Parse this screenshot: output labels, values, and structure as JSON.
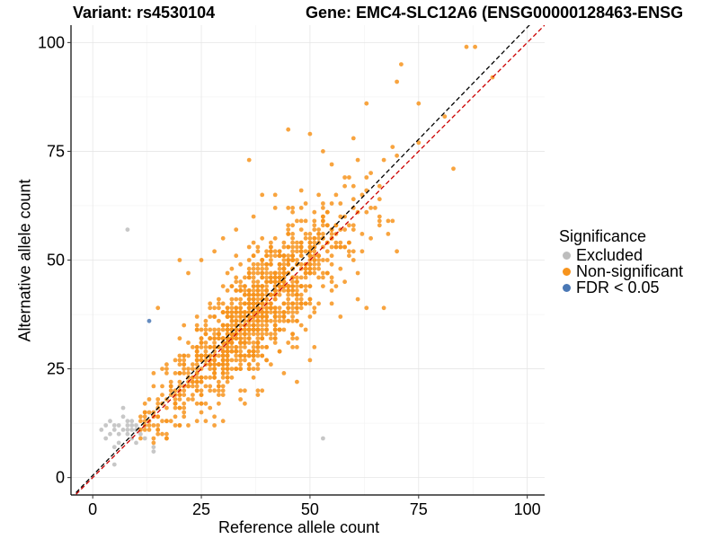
{
  "chart_data": {
    "type": "scatter",
    "title_left": "Variant: rs4530104",
    "title_right": "Gene: EMC4-SLC12A6 (ENSG00000128463-ENSG",
    "xlabel": "Reference allele count",
    "ylabel": "Alternative allele count",
    "xlim": [
      -5,
      104
    ],
    "ylim": [
      -4,
      104
    ],
    "x_ticks": [
      0,
      25,
      50,
      75,
      100
    ],
    "y_ticks": [
      0,
      25,
      50,
      75,
      100
    ],
    "grid": true,
    "reference_lines": [
      {
        "name": "identity",
        "slope": 1,
        "intercept": 0,
        "color": "#cc0000",
        "style": "dashed"
      },
      {
        "name": "fit",
        "slope": 1.03,
        "intercept": 0.5,
        "color": "#000000",
        "style": "dashed"
      }
    ],
    "legend": {
      "title": "Significance",
      "position": "right",
      "entries": [
        {
          "label": "Excluded",
          "color": "#bdbdbd"
        },
        {
          "label": "Non-significant",
          "color": "#f7941d"
        },
        {
          "label": "FDR < 0.05",
          "color": "#4a78b5"
        }
      ]
    },
    "series": [
      {
        "name": "Excluded",
        "color": "#bdbdbd",
        "points": [
          [
            8,
            57
          ],
          [
            53,
            9
          ],
          [
            2,
            11
          ],
          [
            3,
            12
          ],
          [
            4,
            10
          ],
          [
            4,
            13
          ],
          [
            5,
            11
          ],
          [
            5,
            12
          ],
          [
            5,
            7
          ],
          [
            5,
            3
          ],
          [
            6,
            12
          ],
          [
            6,
            10
          ],
          [
            7,
            14
          ],
          [
            7,
            16
          ],
          [
            8,
            10
          ],
          [
            8,
            11
          ],
          [
            8,
            12
          ],
          [
            8,
            13
          ],
          [
            9,
            13
          ],
          [
            9,
            11
          ],
          [
            9,
            9
          ],
          [
            10,
            8
          ],
          [
            10,
            12
          ],
          [
            11,
            10
          ],
          [
            12,
            9
          ],
          [
            12,
            12
          ],
          [
            14,
            7
          ],
          [
            14,
            6
          ],
          [
            6,
            8
          ],
          [
            3,
            9
          ],
          [
            7,
            11
          ],
          [
            9,
            12
          ],
          [
            10,
            11
          ],
          [
            11,
            11
          ]
        ]
      },
      {
        "name": "Non-significant",
        "color": "#f7941d",
        "anchors": [
          [
            86,
            99
          ],
          [
            88,
            99
          ],
          [
            71,
            95
          ],
          [
            70,
            91
          ],
          [
            92,
            92
          ],
          [
            81,
            83
          ],
          [
            83,
            71
          ],
          [
            75,
            86
          ],
          [
            63,
            86
          ],
          [
            75,
            77
          ],
          [
            67,
            73
          ],
          [
            69,
            76
          ],
          [
            70,
            74
          ],
          [
            60,
            78
          ],
          [
            63,
            69
          ],
          [
            55,
            72
          ],
          [
            53,
            75
          ],
          [
            50,
            79
          ],
          [
            45,
            80
          ],
          [
            36,
            73
          ],
          [
            65,
            62
          ],
          [
            66,
            64
          ],
          [
            68,
            56
          ],
          [
            69,
            59
          ],
          [
            70,
            52
          ],
          [
            57,
            63
          ],
          [
            58,
            60
          ],
          [
            60,
            64
          ],
          [
            45,
            62
          ],
          [
            42,
            65
          ],
          [
            39,
            65
          ],
          [
            37,
            60
          ],
          [
            48,
            66
          ],
          [
            55,
            40
          ],
          [
            57,
            37
          ],
          [
            61,
            41
          ],
          [
            63,
            39
          ],
          [
            67,
            39
          ],
          [
            51,
            30
          ],
          [
            44,
            24
          ],
          [
            47,
            22
          ],
          [
            38,
            20
          ],
          [
            34,
            18
          ],
          [
            30,
            19
          ],
          [
            27,
            20
          ],
          [
            25,
            15
          ],
          [
            28,
            12
          ],
          [
            24,
            13
          ],
          [
            21,
            16
          ],
          [
            20,
            12
          ],
          [
            17,
            9
          ],
          [
            15,
            11
          ],
          [
            14,
            14
          ],
          [
            13,
            11
          ],
          [
            14,
            24
          ],
          [
            13,
            13
          ],
          [
            16,
            13
          ],
          [
            19,
            12
          ],
          [
            21,
            35
          ],
          [
            15,
            39
          ],
          [
            20,
            50
          ],
          [
            22,
            47
          ],
          [
            25,
            50
          ],
          [
            28,
            52
          ],
          [
            30,
            55
          ],
          [
            33,
            57
          ],
          [
            36,
            50
          ],
          [
            37,
            54
          ],
          [
            40,
            49
          ],
          [
            43,
            46
          ],
          [
            46,
            55
          ],
          [
            50,
            52
          ],
          [
            52,
            49
          ],
          [
            54,
            54
          ],
          [
            56,
            58
          ],
          [
            59,
            51
          ],
          [
            61,
            47
          ],
          [
            62,
            52
          ],
          [
            64,
            55
          ],
          [
            66,
            58
          ],
          [
            58,
            45
          ],
          [
            56,
            44
          ],
          [
            50,
            40
          ],
          [
            45,
            36
          ],
          [
            40,
            30
          ],
          [
            35,
            27
          ],
          [
            30,
            24
          ],
          [
            25,
            20
          ],
          [
            23,
            22
          ],
          [
            26,
            33
          ]
        ],
        "cluster": {
          "n": 1150,
          "x_range": [
            12,
            62
          ],
          "mean_slope": 0.98,
          "spread_sd": 6.3,
          "seed": 4530104
        }
      },
      {
        "name": "FDR < 0.05",
        "color": "#4a78b5",
        "points": [
          [
            13,
            36
          ]
        ]
      }
    ]
  }
}
